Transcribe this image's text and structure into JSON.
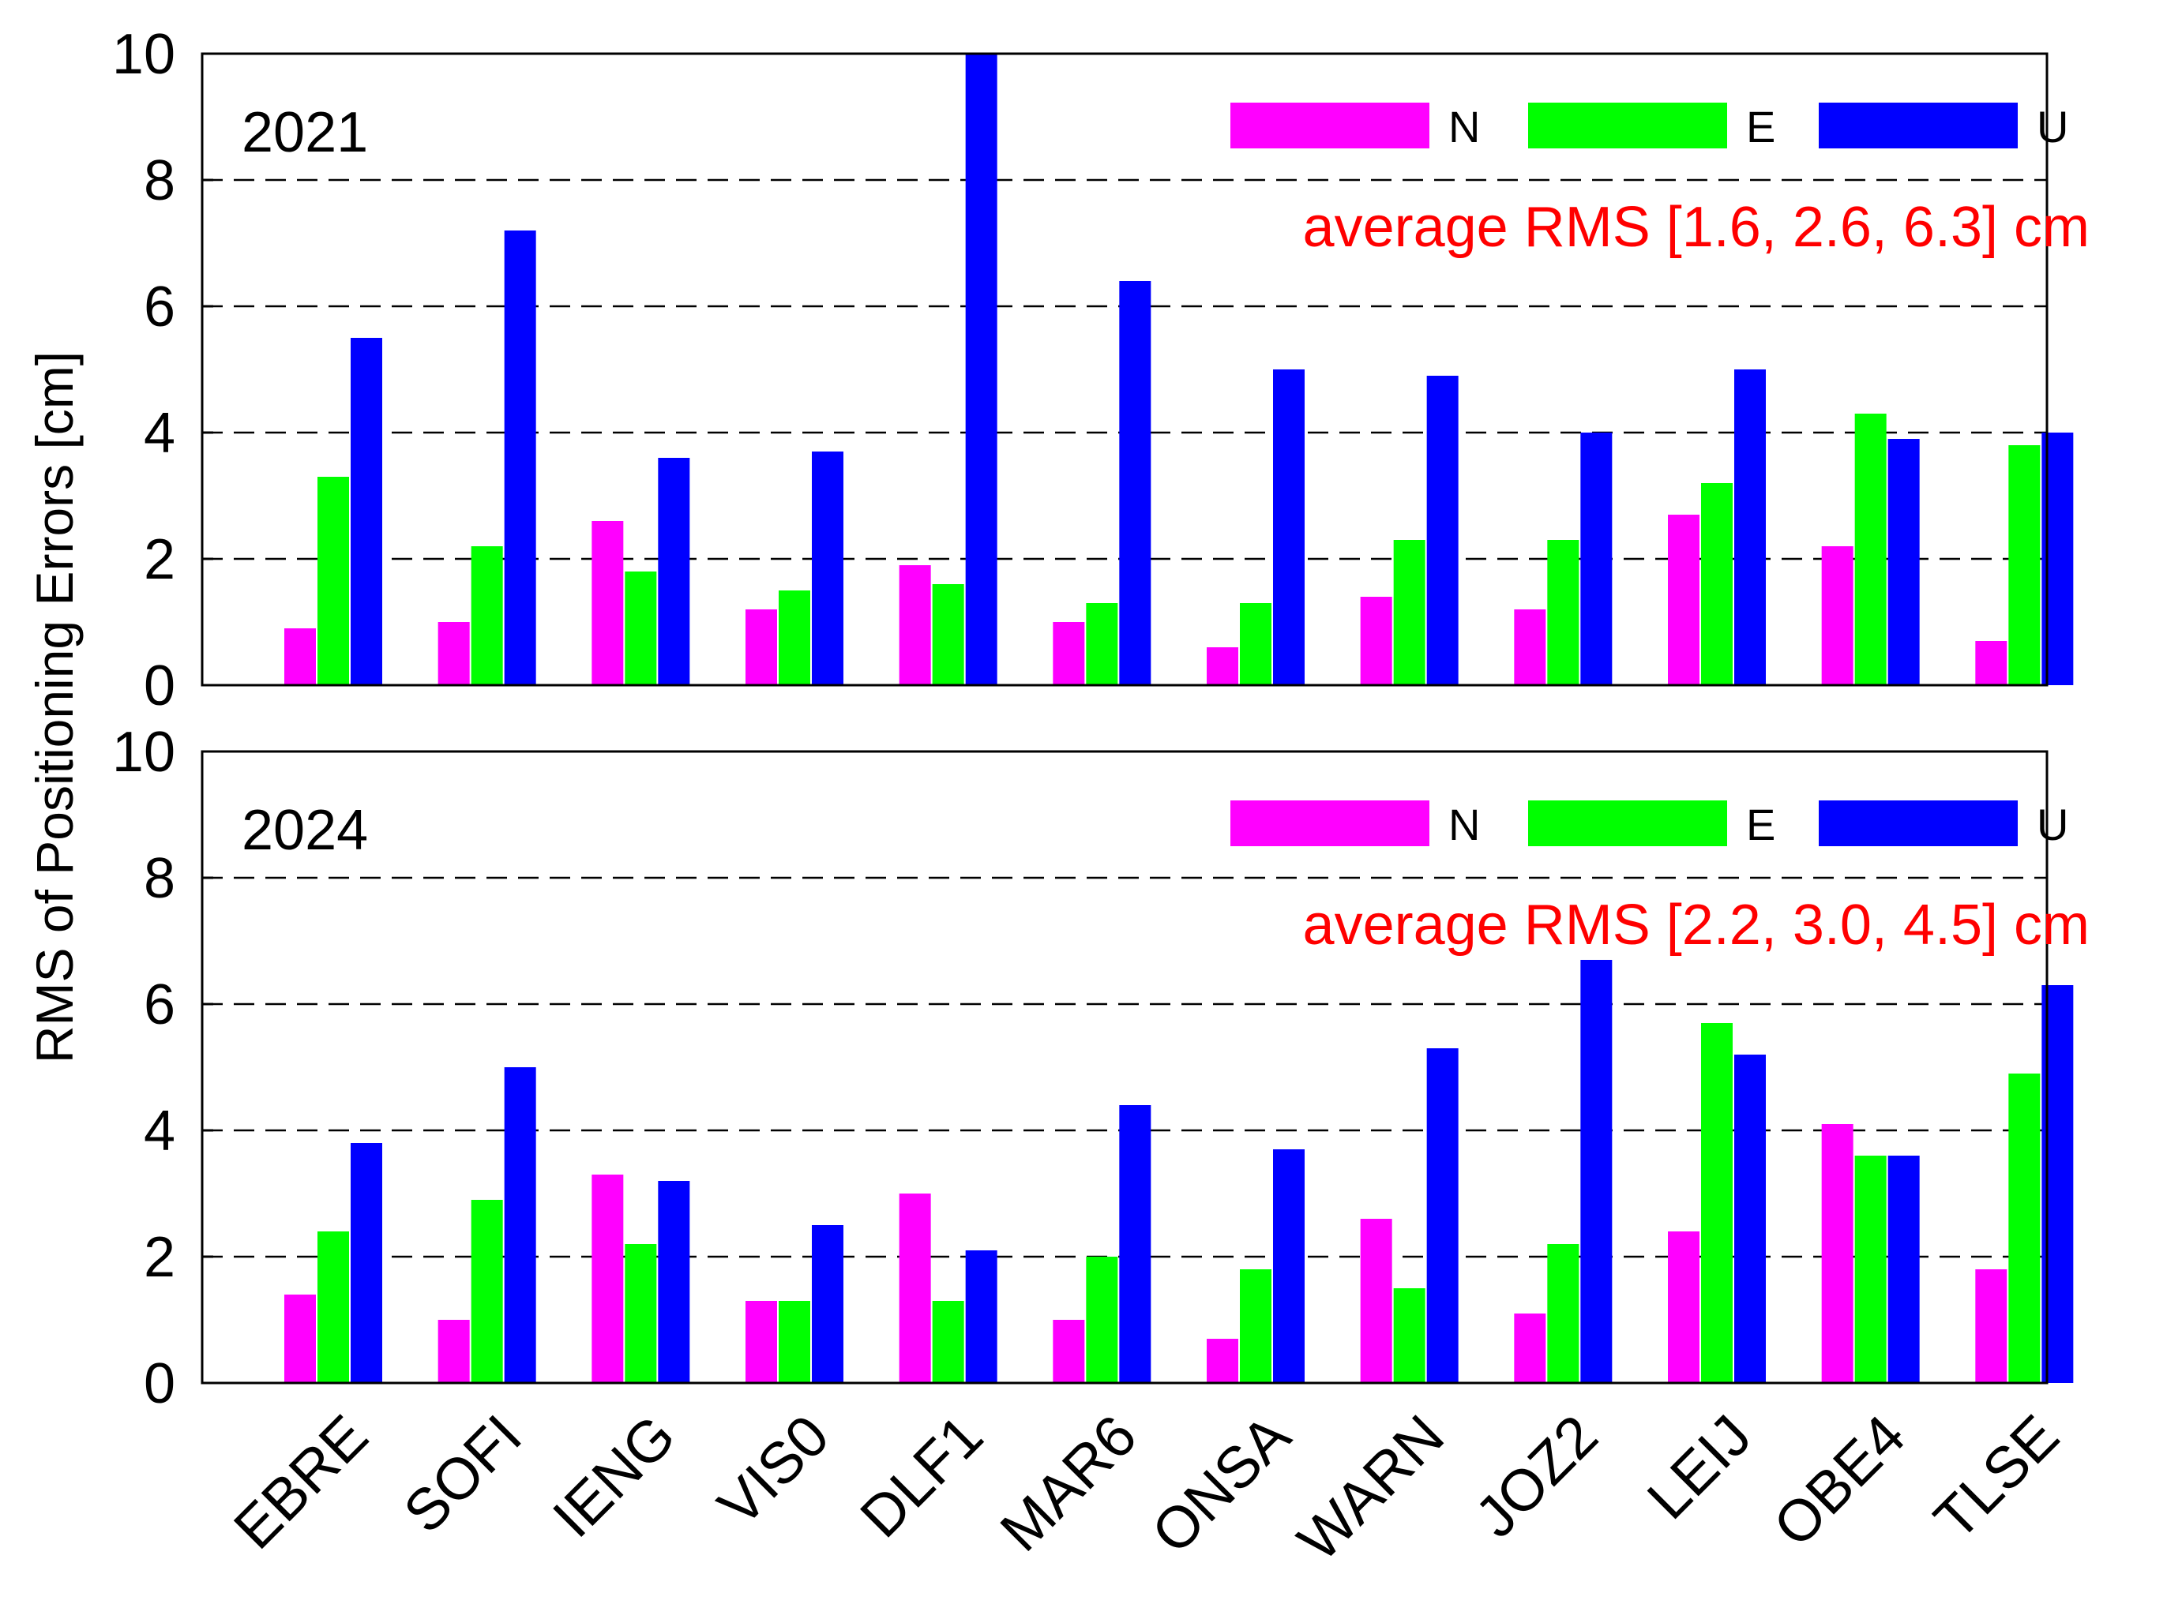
{
  "chart_data": {
    "type": "bar",
    "ylabel": "RMS of Positioning Errors [cm]",
    "ylim": [
      0,
      10
    ],
    "yticks": [
      "0",
      "2",
      "4",
      "6",
      "8",
      "10"
    ],
    "categories": [
      "EBRE",
      "SOFI",
      "IENG",
      "VIS0",
      "DLF1",
      "MAR6",
      "ONSA",
      "WARN",
      "JOZ2",
      "LEIJ",
      "OBE4",
      "TLSE"
    ],
    "legend": [
      {
        "label": "N",
        "color": "#ff00ff"
      },
      {
        "label": "E",
        "color": "#00ff00"
      },
      {
        "label": "U",
        "color": "#0000ff"
      }
    ],
    "panels": [
      {
        "title": "2021",
        "annotation": "average RMS [1.6, 2.6, 6.3] cm",
        "series": [
          {
            "name": "N",
            "values": [
              0.9,
              1.0,
              2.6,
              1.2,
              1.9,
              1.0,
              0.6,
              1.4,
              1.2,
              2.7,
              2.2,
              0.7
            ]
          },
          {
            "name": "E",
            "values": [
              3.3,
              2.2,
              1.8,
              1.5,
              1.6,
              1.3,
              1.3,
              2.3,
              2.3,
              3.2,
              4.3,
              3.8
            ]
          },
          {
            "name": "U",
            "values": [
              5.5,
              7.2,
              3.6,
              3.7,
              10.0,
              6.4,
              5.0,
              4.9,
              4.0,
              5.0,
              3.9,
              4.0
            ]
          }
        ]
      },
      {
        "title": "2024",
        "annotation": "average RMS [2.2, 3.0, 4.5] cm",
        "series": [
          {
            "name": "N",
            "values": [
              1.4,
              1.0,
              3.3,
              1.3,
              3.0,
              1.0,
              0.7,
              2.6,
              1.1,
              2.4,
              4.1,
              1.8
            ]
          },
          {
            "name": "E",
            "values": [
              2.4,
              2.9,
              2.2,
              1.3,
              1.3,
              2.0,
              1.8,
              1.5,
              2.2,
              5.7,
              3.6,
              4.9
            ]
          },
          {
            "name": "U",
            "values": [
              3.8,
              5.0,
              3.2,
              2.5,
              2.1,
              4.4,
              3.7,
              5.3,
              6.7,
              5.2,
              3.6,
              6.3
            ]
          }
        ]
      }
    ]
  }
}
